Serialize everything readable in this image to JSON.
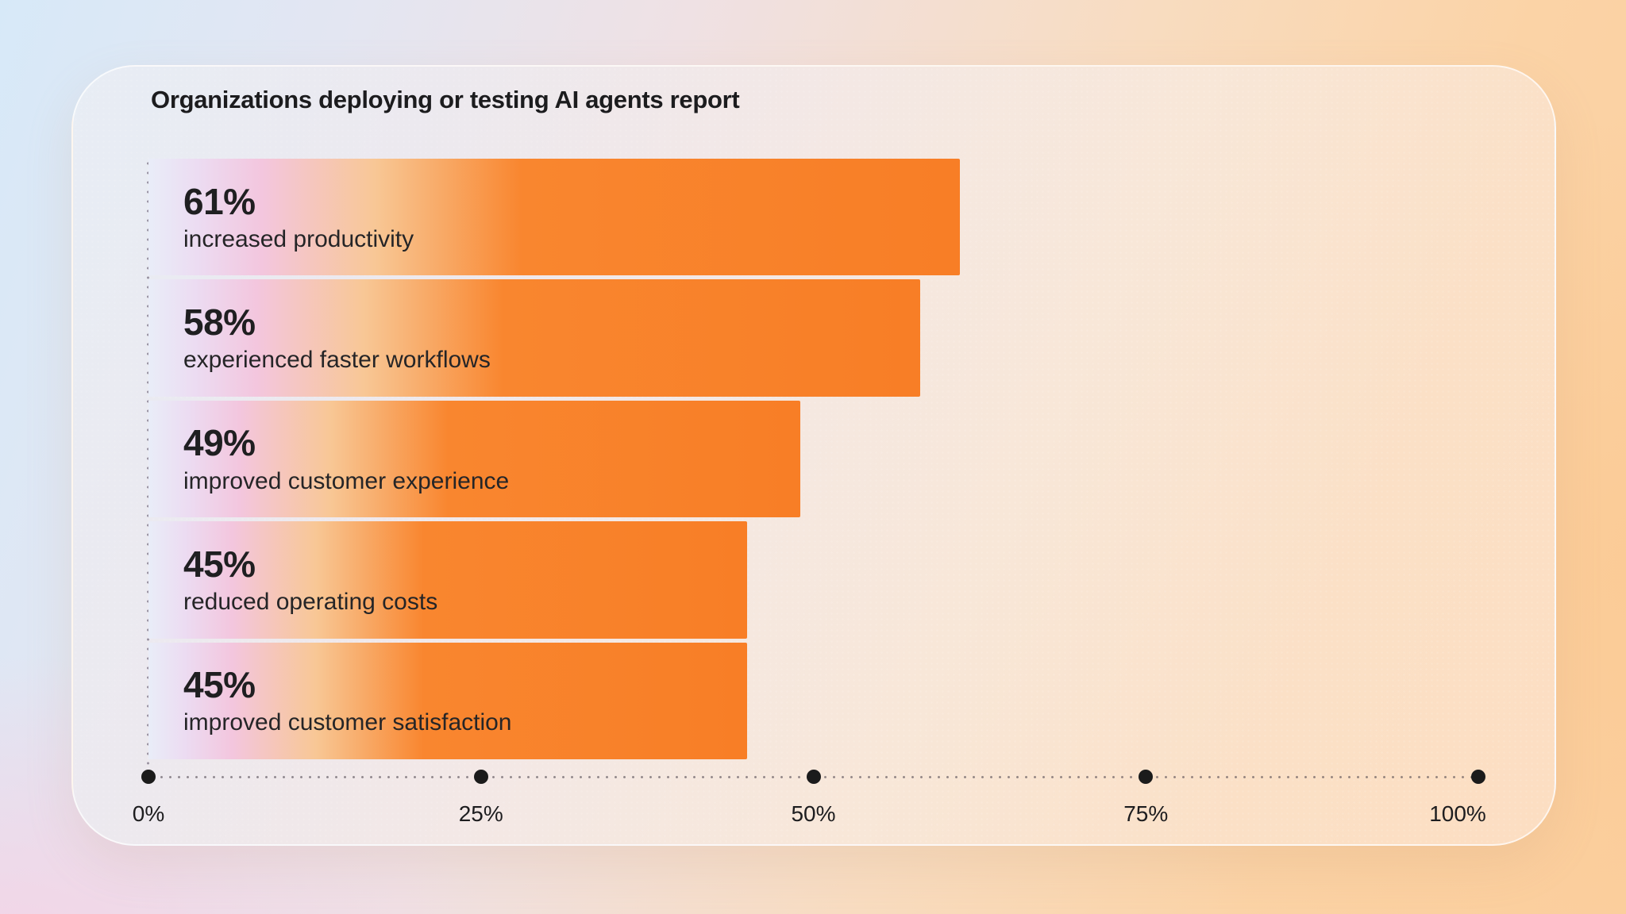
{
  "title": "Organizations deploying or testing AI agents report",
  "chart_data": {
    "type": "bar",
    "orientation": "horizontal",
    "title": "Organizations deploying or testing AI agents report",
    "categories": [
      "increased productivity",
      "experienced faster workflows",
      "improved customer experience",
      "reduced operating costs",
      "improved customer satisfaction"
    ],
    "values": [
      61,
      58,
      49,
      45,
      45
    ],
    "value_labels": [
      "61%",
      "58%",
      "49%",
      "45%",
      "45%"
    ],
    "xlim": [
      0,
      100
    ],
    "x_ticks": [
      {
        "label": "0%",
        "value": 0
      },
      {
        "label": "25%",
        "value": 25
      },
      {
        "label": "50%",
        "value": 50
      },
      {
        "label": "75%",
        "value": 75
      },
      {
        "label": "100%",
        "value": 100
      }
    ],
    "legend_position": "none",
    "grid": "dotted baseline and dotted zero line with black tick dots",
    "colors": {
      "bar_gradient_start": "#e9edf8",
      "bar_gradient_pink": "#f3c6de",
      "bar_gradient_peach": "#f8c795",
      "bar_orange": "#f9822e",
      "text": "#1d1d1f",
      "tick_dot": "#1b1b1b"
    }
  }
}
